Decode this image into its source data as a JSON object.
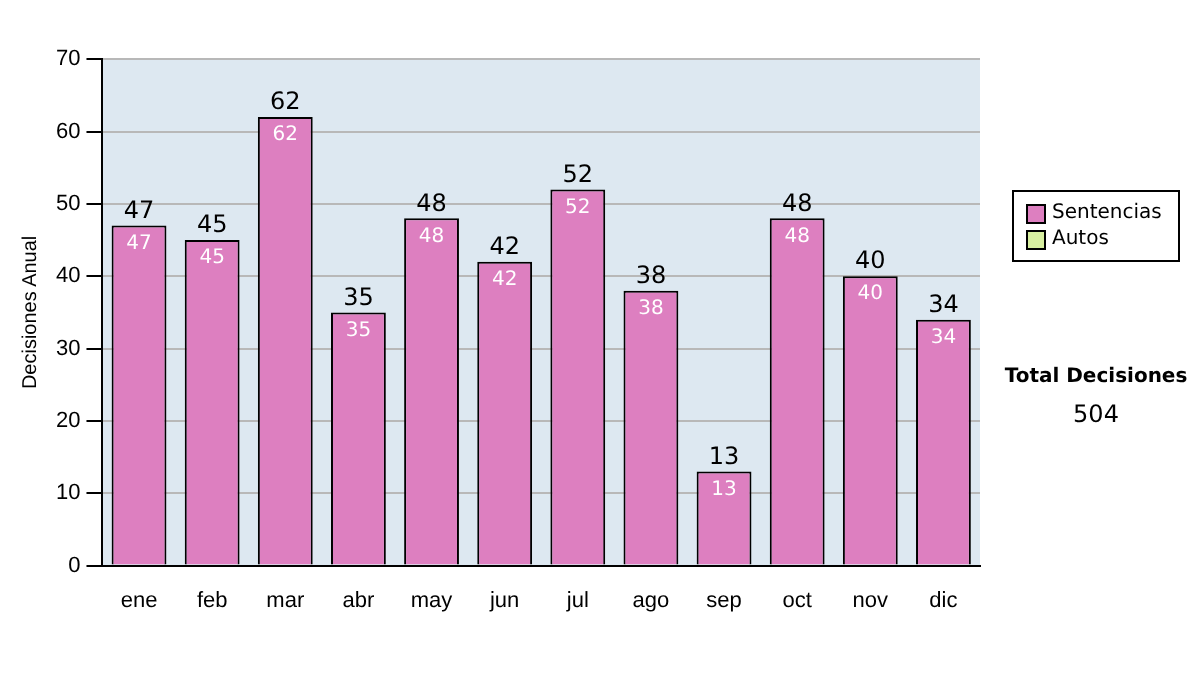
{
  "chart_data": {
    "type": "bar",
    "ylabel": "Decisiones Anual",
    "categories": [
      "ene",
      "feb",
      "mar",
      "abr",
      "may",
      "jun",
      "jul",
      "ago",
      "sep",
      "oct",
      "nov",
      "dic"
    ],
    "series": [
      {
        "name": "Sentencias",
        "color": "#dd7fc0",
        "values": [
          47,
          45,
          62,
          35,
          48,
          42,
          52,
          38,
          13,
          48,
          40,
          34
        ],
        "value_labels": [
          "47",
          "45",
          "62",
          "35",
          "48",
          "42",
          "52",
          "38",
          "13",
          "48",
          "40",
          "34"
        ]
      },
      {
        "name": "Autos",
        "color": "#d8f0a0",
        "values": [
          0,
          0,
          0,
          0,
          0,
          0,
          0,
          0,
          0,
          0,
          0,
          0
        ],
        "value_labels": [
          null,
          null,
          null,
          null,
          null,
          null,
          null,
          null,
          null,
          null,
          null,
          null
        ]
      }
    ],
    "stacked": true,
    "totals": [
      "47",
      "45",
      "62",
      "35",
      "48",
      "42",
      "52",
      "38",
      "13",
      "48",
      "40",
      "34"
    ],
    "ylim": [
      0,
      70
    ],
    "yticks": [
      0,
      10,
      20,
      30,
      40,
      50,
      60,
      70
    ],
    "grid": "y",
    "legend": "right",
    "annotations": [
      "Total Decisiones",
      "504"
    ]
  }
}
